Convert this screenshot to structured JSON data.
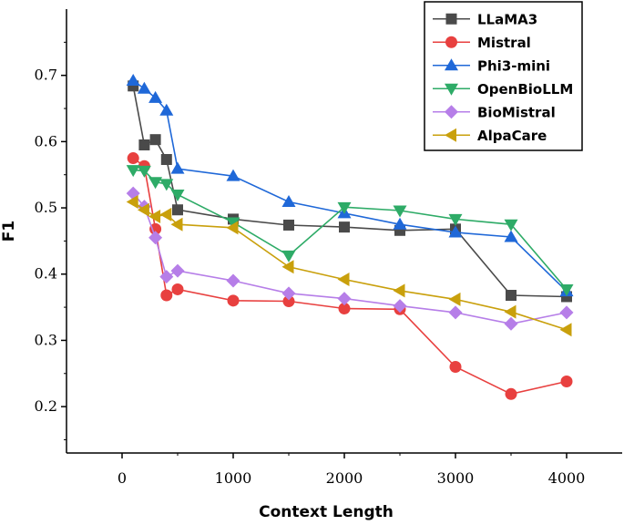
{
  "chart_data": {
    "type": "line",
    "title": "",
    "xlabel": "Context Length",
    "ylabel": "F1",
    "xlim": [
      -500,
      4500
    ],
    "ylim": [
      0.13,
      0.8
    ],
    "xticks": [
      0,
      1000,
      2000,
      3000,
      4000
    ],
    "xtick_labels": [
      "0",
      "1000",
      "2000",
      "3000",
      "4000"
    ],
    "yticks": [
      0.2,
      0.3,
      0.4,
      0.5,
      0.6,
      0.7
    ],
    "ytick_labels": [
      "0.2",
      "0.3",
      "0.4",
      "0.5",
      "0.6",
      "0.7"
    ],
    "grid": false,
    "legend_position": "top-right",
    "x": [
      100,
      200,
      300,
      400,
      500,
      1000,
      1500,
      2000,
      2500,
      3000,
      3500,
      4000
    ],
    "series": [
      {
        "name": "LLaMA3",
        "color": "#4a4a4a",
        "marker": "square",
        "values": [
          0.684,
          0.595,
          0.603,
          0.573,
          0.497,
          0.483,
          0.474,
          0.471,
          0.466,
          0.468,
          0.368,
          0.366
        ]
      },
      {
        "name": "Mistral",
        "color": "#e8403f",
        "marker": "circle",
        "values": [
          0.575,
          0.563,
          0.468,
          0.368,
          0.377,
          0.36,
          0.359,
          0.348,
          0.347,
          0.26,
          0.219,
          0.238
        ]
      },
      {
        "name": "Phi3-mini",
        "color": "#1f68d8",
        "marker": "triangle-up",
        "values": [
          0.692,
          0.68,
          0.666,
          0.647,
          0.559,
          0.548,
          0.509,
          0.492,
          0.475,
          0.463,
          0.456,
          0.374
        ]
      },
      {
        "name": "OpenBioLLM",
        "color": "#2eab67",
        "marker": "triangle-down",
        "values": [
          0.557,
          0.556,
          0.539,
          0.536,
          0.52,
          0.478,
          0.428,
          0.501,
          0.496,
          0.483,
          0.475,
          0.377
        ]
      },
      {
        "name": "BioMistral",
        "color": "#b67ee8",
        "marker": "diamond",
        "values": [
          0.522,
          0.502,
          0.455,
          0.396,
          0.405,
          0.39,
          0.371,
          0.363,
          0.352,
          0.342,
          0.325,
          0.342
        ]
      },
      {
        "name": "AlpaCare",
        "color": "#c9a00c",
        "marker": "triangle-left",
        "values": [
          0.509,
          0.497,
          0.487,
          0.49,
          0.475,
          0.47,
          0.411,
          0.392,
          0.375,
          0.362,
          0.343,
          0.316
        ]
      }
    ]
  }
}
